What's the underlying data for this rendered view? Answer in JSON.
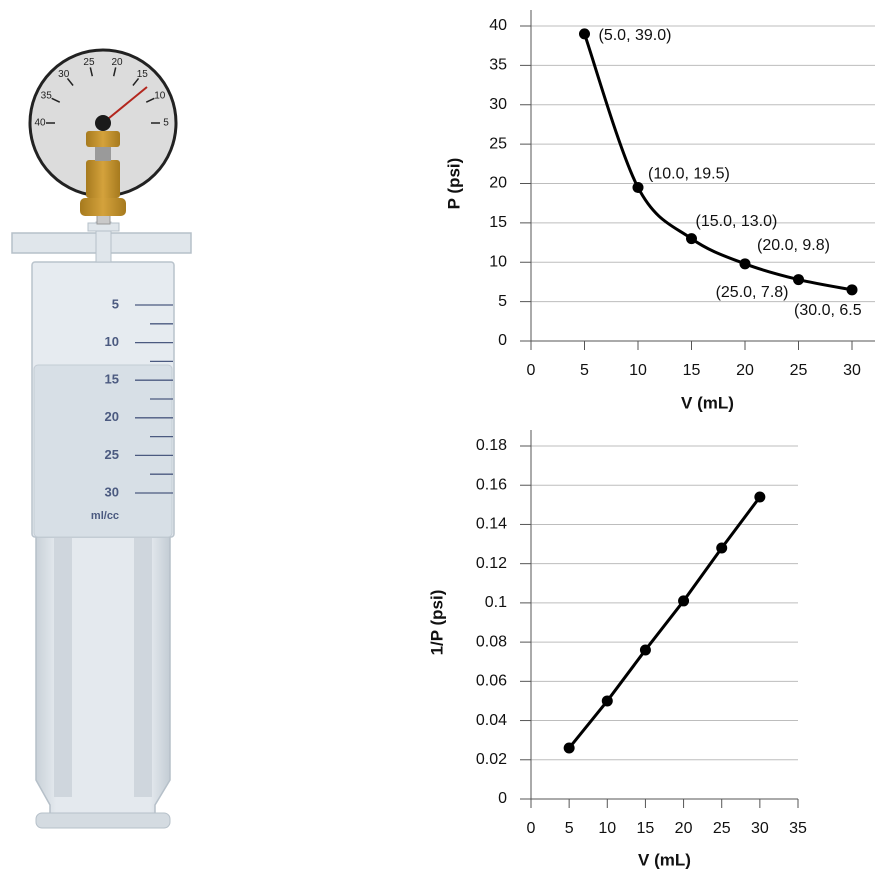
{
  "illustration": {
    "gauge_scale": [
      "40",
      "35",
      "30",
      "25",
      "20",
      "15",
      "10",
      "5"
    ],
    "syringe_scale": [
      "5",
      "10",
      "15",
      "20",
      "25",
      "30"
    ],
    "syringe_unit": "ml/cc"
  },
  "chart_data": [
    {
      "type": "line",
      "x": [
        5,
        10,
        15,
        20,
        25,
        30
      ],
      "values": [
        39.0,
        19.5,
        13.0,
        9.8,
        7.8,
        6.5
      ],
      "value_labels": [
        "(5.0, 39.0)",
        "(10.0, 19.5)",
        "(15.0, 13.0)",
        "(20.0, 9.8)",
        "(25.0, 7.8)",
        "(30.0, 6.5"
      ],
      "color": "#000000",
      "smooth": true,
      "x_label": "V (mL)",
      "y_label": "P (psi)",
      "xlim": [
        0,
        30
      ],
      "xticks": [
        0,
        5,
        10,
        15,
        20,
        25,
        30
      ],
      "ylim": [
        0,
        40
      ],
      "yticks": [
        0,
        5,
        10,
        15,
        20,
        25,
        30,
        35,
        40
      ],
      "grid": true
    },
    {
      "type": "line",
      "x": [
        5,
        10,
        15,
        20,
        25,
        30
      ],
      "values": [
        0.026,
        0.05,
        0.076,
        0.101,
        0.128,
        0.154
      ],
      "color": "#000000",
      "smooth": false,
      "x_label": "V (mL)",
      "y_label": "1/P (psi)",
      "xlim": [
        0,
        35
      ],
      "xticks": [
        0,
        5,
        10,
        15,
        20,
        25,
        30,
        35
      ],
      "ylim": [
        0,
        0.18
      ],
      "yticks": [
        0,
        0.02,
        0.04,
        0.06,
        0.08,
        0.1,
        0.12,
        0.14,
        0.16,
        0.18
      ],
      "grid": true
    }
  ]
}
